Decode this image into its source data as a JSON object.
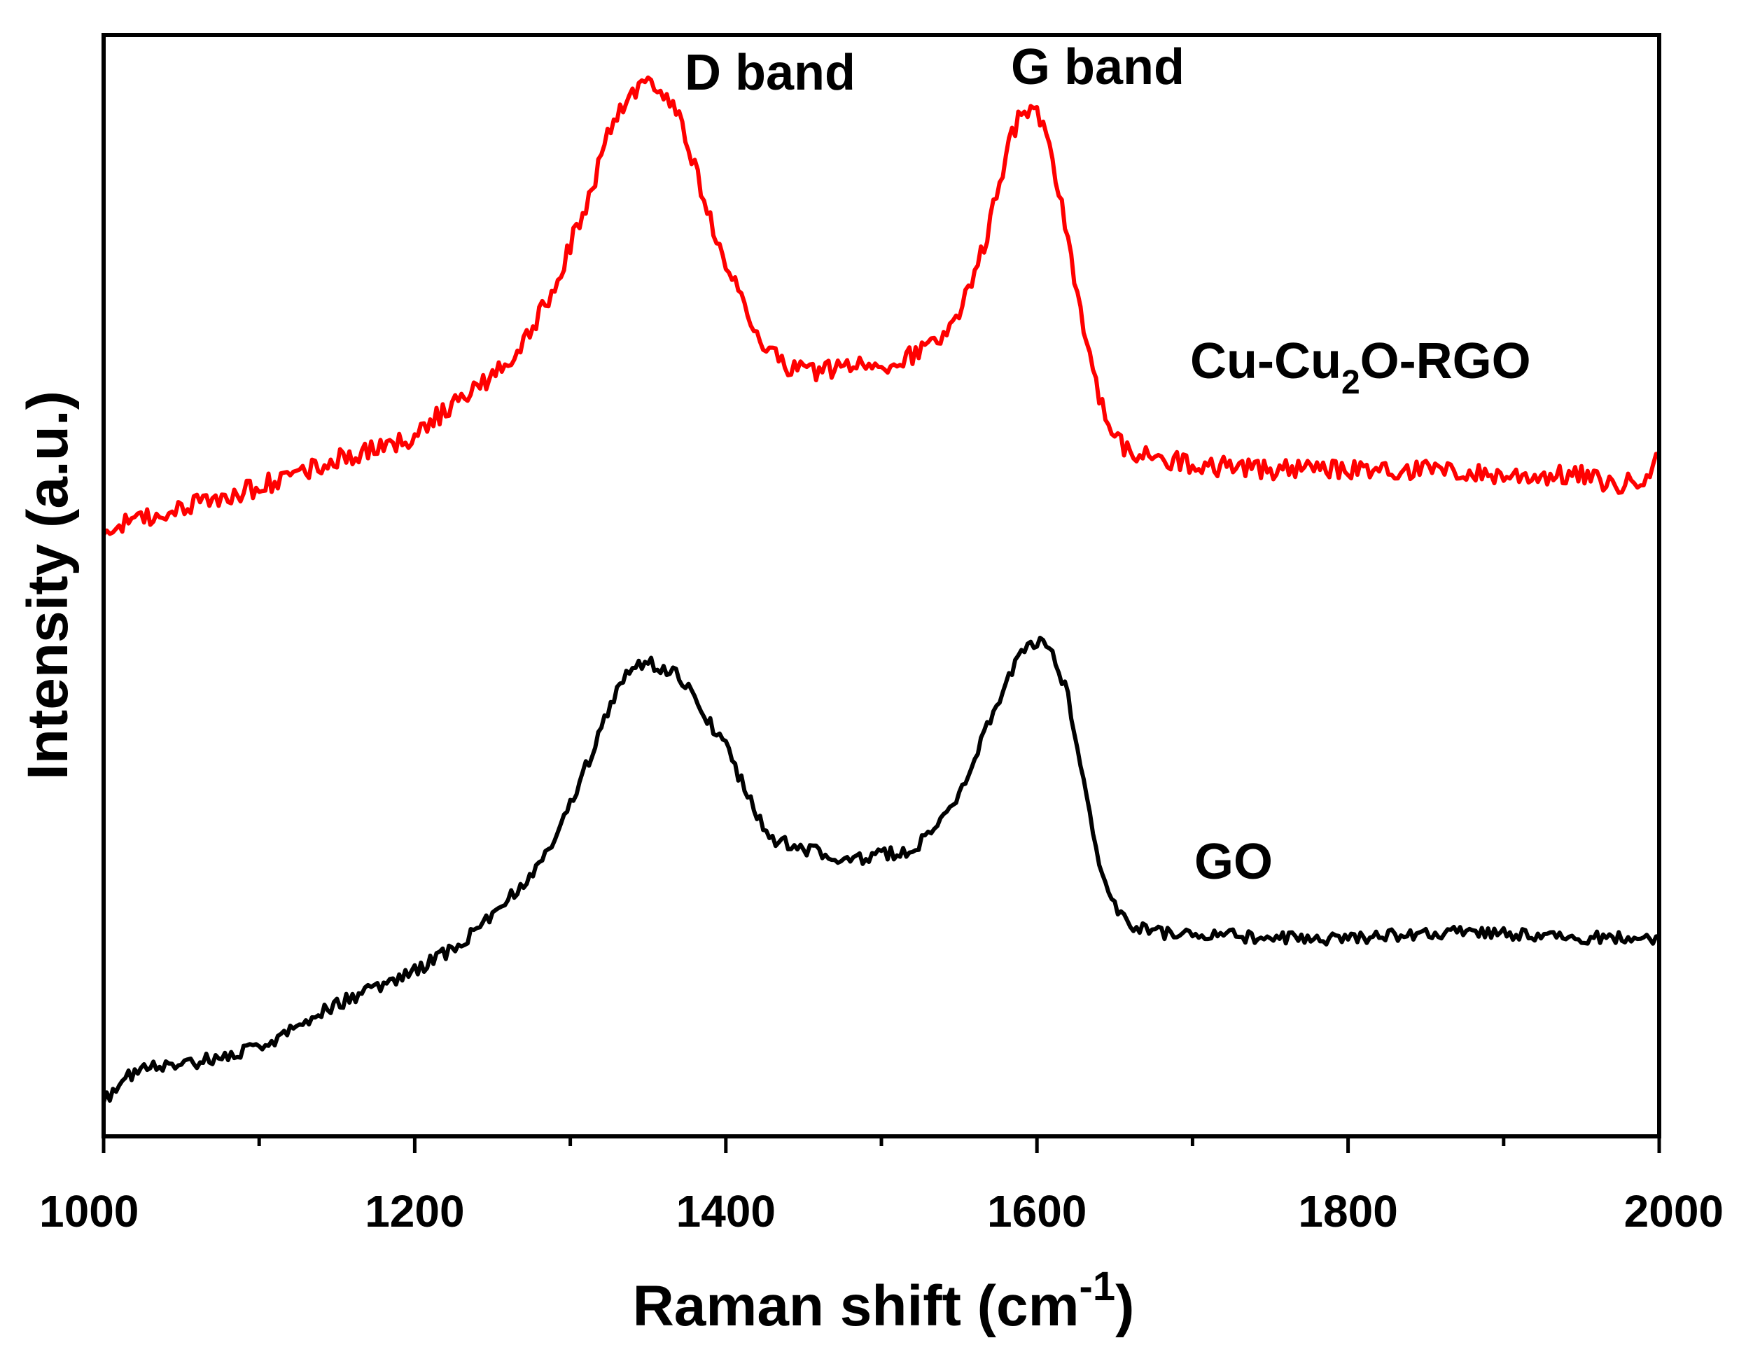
{
  "chart_data": {
    "type": "line",
    "title": "",
    "xlabel": "Raman shift (cm",
    "xlabel_superscript": "-1",
    "xlabel_suffix": ")",
    "ylabel": "Intensity (a.u.)",
    "xlim": [
      1000,
      2000
    ],
    "ylim": [
      0,
      100
    ],
    "x_ticks_major": [
      1000,
      1200,
      1400,
      1600,
      1800,
      2000
    ],
    "x_tick_labels": [
      "1000",
      "1200",
      "1400",
      "1600",
      "1800",
      "2000"
    ],
    "x_ticks_minor": [
      1100,
      1300,
      1500,
      1700,
      1900
    ],
    "y_ticks": [],
    "grid": false,
    "legend": null,
    "annotations": {
      "d_band": "D band",
      "g_band": "G band",
      "rgo_label_pre": "Cu-Cu",
      "rgo_label_sub": "2",
      "rgo_label_post": "O-RGO",
      "go_label": "GO"
    },
    "series": [
      {
        "name": "Cu-Cu2O-RGO",
        "color": "#ff0000",
        "noise_amplitude": 0.9,
        "x": [
          1000,
          1050,
          1100,
          1150,
          1180,
          1200,
          1220,
          1250,
          1270,
          1290,
          1300,
          1310,
          1320,
          1330,
          1340,
          1350,
          1360,
          1370,
          1380,
          1390,
          1400,
          1410,
          1420,
          1430,
          1440,
          1450,
          1460,
          1480,
          1500,
          1520,
          1540,
          1550,
          1560,
          1570,
          1580,
          1590,
          1600,
          1610,
          1620,
          1630,
          1640,
          1650,
          1660,
          1680,
          1700,
          1750,
          1800,
          1850,
          1900,
          1950,
          1975,
          1990,
          2000
        ],
        "y": [
          55,
          57,
          59,
          61.5,
          62.5,
          63.5,
          66,
          69,
          72,
          77,
          81,
          84,
          89,
          93,
          95,
          95.5,
          95,
          93,
          88,
          83,
          79,
          76,
          73,
          71,
          70,
          69.5,
          69.5,
          70,
          70,
          71,
          73,
          75,
          78,
          83,
          89,
          93.5,
          93,
          89,
          81,
          73,
          67,
          63.5,
          62,
          61.5,
          61,
          60.5,
          60.5,
          60.5,
          60,
          60,
          59,
          60,
          61.5
        ]
      },
      {
        "name": "GO",
        "color": "#000000",
        "noise_amplitude": 0.6,
        "x": [
          1000,
          1010,
          1030,
          1050,
          1100,
          1150,
          1200,
          1230,
          1250,
          1270,
          1290,
          1300,
          1310,
          1320,
          1330,
          1340,
          1350,
          1360,
          1370,
          1380,
          1390,
          1400,
          1420,
          1430,
          1440,
          1450,
          1460,
          1470,
          1480,
          1500,
          1520,
          1540,
          1550,
          1560,
          1570,
          1580,
          1590,
          1600,
          1610,
          1620,
          1630,
          1640,
          1650,
          1660,
          1680,
          1700,
          1750,
          1800,
          1850,
          1900,
          1950,
          2000
        ],
        "y": [
          3,
          5,
          6.5,
          6.5,
          8,
          12,
          15,
          17.5,
          20,
          23,
          27,
          30,
          33.5,
          37,
          40.5,
          42.5,
          43,
          42.5,
          42,
          39.5,
          37.5,
          35.5,
          29,
          27,
          26.5,
          26,
          26,
          25,
          25,
          25.5,
          26,
          29,
          31,
          34,
          38,
          41,
          44,
          45,
          44,
          40,
          32,
          25,
          21,
          19,
          18.5,
          18.5,
          18,
          18,
          18.5,
          18.5,
          18,
          18
        ]
      }
    ]
  }
}
